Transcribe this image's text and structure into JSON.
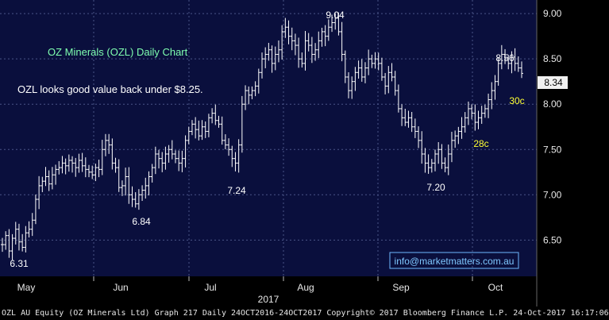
{
  "colors": {
    "plot_background": "#0a0f3d",
    "price_bars": "#ffffff",
    "title_text": "#7fffb0",
    "annotation_text": "#ffffff",
    "move_labels": "#ffff33",
    "email_text": "#7fc8ff",
    "email_border": "#6fb8ff",
    "grid": "#4a5588"
  },
  "chart_data": {
    "type": "bar",
    "style": "ohlc-daily",
    "title": "OZ Minerals (OZL) Daily Chart",
    "comment": "OZL looks good value back under $8.25.",
    "ylim": [
      6.1,
      9.15
    ],
    "y_ticks": [
      6.5,
      7.0,
      7.5,
      8.0,
      8.5,
      9.0
    ],
    "y_tick_labels": [
      "6.50",
      "7.00",
      "7.50",
      "8.00",
      "8.50",
      "9.00"
    ],
    "x_ticks": [
      "May",
      "Jun",
      "Jul",
      "Aug",
      "Sep",
      "Oct"
    ],
    "x_year_label": "2017",
    "last_price": "8.34",
    "grid": true,
    "annotations": [
      {
        "label": "6.31",
        "value": 6.31
      },
      {
        "label": "6.84",
        "value": 6.84
      },
      {
        "label": "7.24",
        "value": 7.24
      },
      {
        "label": "9.04",
        "value": 9.04
      },
      {
        "label": "7.20",
        "value": 7.2
      },
      {
        "label": "8.56",
        "value": 8.56
      },
      {
        "label": "28c"
      },
      {
        "label": "30c"
      }
    ],
    "closes": [
      6.45,
      6.55,
      6.38,
      6.52,
      6.62,
      6.48,
      6.42,
      6.58,
      6.62,
      6.72,
      6.95,
      7.1,
      7.15,
      7.2,
      7.12,
      7.22,
      7.28,
      7.3,
      7.35,
      7.32,
      7.38,
      7.35,
      7.3,
      7.38,
      7.32,
      7.28,
      7.25,
      7.22,
      7.3,
      7.28,
      7.5,
      7.6,
      7.55,
      7.35,
      7.3,
      7.08,
      7.1,
      7.2,
      7.0,
      6.95,
      6.9,
      7.0,
      7.05,
      7.1,
      7.2,
      7.3,
      7.45,
      7.4,
      7.35,
      7.45,
      7.5,
      7.45,
      7.4,
      7.35,
      7.4,
      7.6,
      7.7,
      7.78,
      7.72,
      7.65,
      7.75,
      7.7,
      7.85,
      7.9,
      7.82,
      7.78,
      7.6,
      7.55,
      7.5,
      7.4,
      7.35,
      7.55,
      8.0,
      8.15,
      8.1,
      8.15,
      8.2,
      8.35,
      8.5,
      8.55,
      8.6,
      8.45,
      8.55,
      8.6,
      8.8,
      8.85,
      8.75,
      8.7,
      8.65,
      8.5,
      8.45,
      8.7,
      8.65,
      8.55,
      8.6,
      8.7,
      8.8,
      8.75,
      8.85,
      8.9,
      8.95,
      8.8,
      8.55,
      8.3,
      8.15,
      8.25,
      8.35,
      8.4,
      8.3,
      8.4,
      8.5,
      8.45,
      8.5,
      8.45,
      8.3,
      8.2,
      8.35,
      8.3,
      8.15,
      7.95,
      7.85,
      7.8,
      7.85,
      7.75,
      7.7,
      7.6,
      7.45,
      7.35,
      7.3,
      7.35,
      7.45,
      7.5,
      7.35,
      7.3,
      7.45,
      7.6,
      7.65,
      7.7,
      7.75,
      7.85,
      7.95,
      7.9,
      7.8,
      7.85,
      7.9,
      7.95,
      8.05,
      8.15,
      8.25,
      8.45,
      8.55,
      8.5,
      8.45,
      8.52,
      8.45,
      8.4,
      8.34
    ]
  },
  "contact": {
    "email": "info@marketmatters.com.au"
  },
  "footer": {
    "text": "OZL AU Equity (OZ Minerals Ltd) Graph 217  Daily 24OCT2016-24OCT2017  Copyright© 2017 Bloomberg Finance L.P.  24-Oct-2017 16:17:06"
  }
}
